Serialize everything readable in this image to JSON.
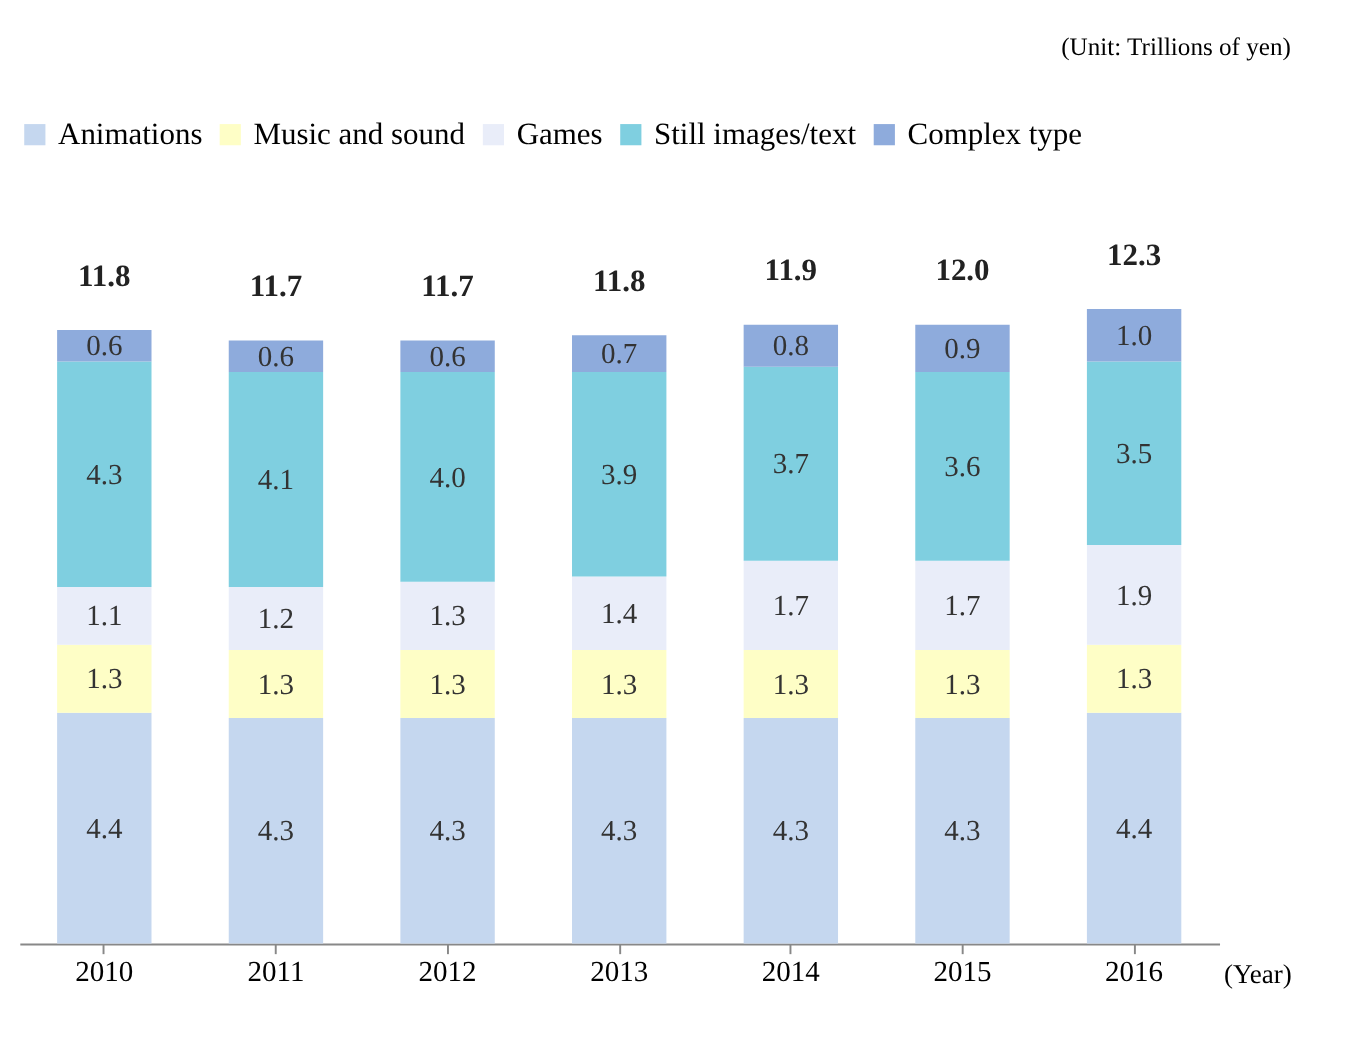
{
  "chart_data": {
    "type": "bar",
    "stacked": true,
    "categories": [
      "2010",
      "2011",
      "2012",
      "2013",
      "2014",
      "2015",
      "2016"
    ],
    "series": [
      {
        "name": "Animations",
        "color": "#c5d7ef",
        "values": [
          4.4,
          4.3,
          4.3,
          4.3,
          4.3,
          4.3,
          4.4
        ]
      },
      {
        "name": "Music and sound",
        "color": "#fefec6",
        "values": [
          1.3,
          1.3,
          1.3,
          1.3,
          1.3,
          1.3,
          1.3
        ]
      },
      {
        "name": "Games",
        "color": "#e9edf9",
        "values": [
          1.1,
          1.2,
          1.3,
          1.4,
          1.7,
          1.7,
          1.9
        ]
      },
      {
        "name": "Still images/text",
        "color": "#7fcfe0",
        "values": [
          4.3,
          4.1,
          4.0,
          3.9,
          3.7,
          3.6,
          3.5
        ],
        "value_labels": [
          "4.3",
          "4.1",
          "4.0",
          "3.9",
          "3.7",
          "3.6",
          "3.5"
        ]
      },
      {
        "name": "Complex type",
        "color": "#8eabdc",
        "values": [
          0.6,
          0.6,
          0.6,
          0.7,
          0.8,
          0.9,
          1.0
        ],
        "value_labels": [
          "0.6",
          "0.6",
          "0.6",
          "0.7",
          "0.8",
          "0.9",
          "1.0"
        ]
      }
    ],
    "data_labels": true,
    "totals": [
      "11.8",
      "11.7",
      "11.7",
      "11.8",
      "11.9",
      "12.0",
      "12.3"
    ],
    "xlabel": "(Year)",
    "legend": "top",
    "annotations": [
      "(Unit: Trillions of yen)"
    ]
  }
}
